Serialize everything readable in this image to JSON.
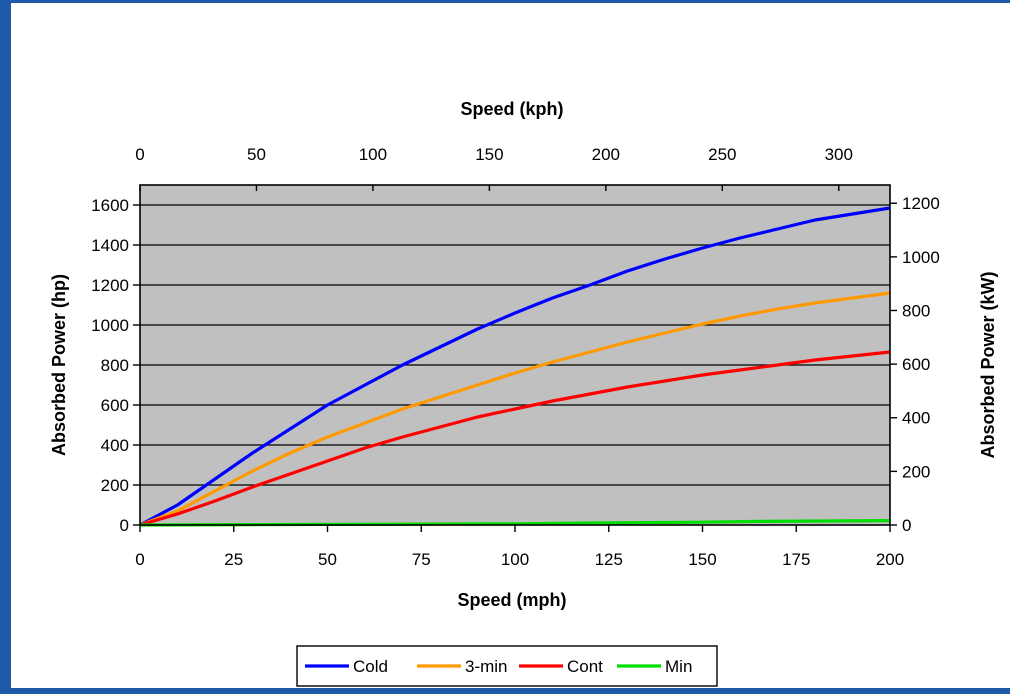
{
  "chart_data": {
    "type": "line",
    "xlabel": "Speed (mph)",
    "x2label": "Speed (kph)",
    "ylabel": "Absorbed Power (hp)",
    "y2label": "Absorbed Power (kW)",
    "xlim": [
      0,
      200
    ],
    "ylim": [
      0,
      1700
    ],
    "x2lim": [
      0,
      322
    ],
    "y2lim": [
      0,
      1268
    ],
    "x_ticks": [
      "0",
      "25",
      "50",
      "75",
      "100",
      "125",
      "150",
      "175",
      "200"
    ],
    "x2_ticks": [
      "0",
      "50",
      "100",
      "150",
      "200",
      "250",
      "300"
    ],
    "y_ticks": [
      "0",
      "200",
      "400",
      "600",
      "800",
      "1000",
      "1200",
      "1400",
      "1600"
    ],
    "y2_ticks": [
      "0",
      "200",
      "400",
      "600",
      "800",
      "1000",
      "1200"
    ],
    "grid": true,
    "plot_background": "#c0c0c0",
    "legend_position": "bottom",
    "series": [
      {
        "name": "Cold",
        "color": "#0000ff",
        "points": [
          [
            0,
            0
          ],
          [
            10,
            100
          ],
          [
            20,
            230
          ],
          [
            30,
            360
          ],
          [
            40,
            480
          ],
          [
            50,
            600
          ],
          [
            60,
            700
          ],
          [
            70,
            800
          ],
          [
            80,
            890
          ],
          [
            90,
            980
          ],
          [
            100,
            1060
          ],
          [
            110,
            1135
          ],
          [
            120,
            1200
          ],
          [
            130,
            1270
          ],
          [
            140,
            1330
          ],
          [
            150,
            1385
          ],
          [
            160,
            1435
          ],
          [
            170,
            1480
          ],
          [
            180,
            1525
          ],
          [
            190,
            1555
          ],
          [
            200,
            1585
          ]
        ]
      },
      {
        "name": "3-min",
        "color": "#ff9900",
        "points": [
          [
            0,
            0
          ],
          [
            10,
            70
          ],
          [
            20,
            170
          ],
          [
            30,
            270
          ],
          [
            40,
            360
          ],
          [
            50,
            440
          ],
          [
            60,
            510
          ],
          [
            70,
            580
          ],
          [
            80,
            640
          ],
          [
            90,
            700
          ],
          [
            100,
            760
          ],
          [
            110,
            815
          ],
          [
            120,
            865
          ],
          [
            130,
            915
          ],
          [
            140,
            960
          ],
          [
            150,
            1005
          ],
          [
            160,
            1045
          ],
          [
            170,
            1080
          ],
          [
            180,
            1110
          ],
          [
            190,
            1135
          ],
          [
            200,
            1160
          ]
        ]
      },
      {
        "name": "Cont",
        "color": "#ff0000",
        "points": [
          [
            0,
            0
          ],
          [
            10,
            55
          ],
          [
            20,
            120
          ],
          [
            30,
            190
          ],
          [
            40,
            255
          ],
          [
            50,
            320
          ],
          [
            60,
            385
          ],
          [
            70,
            440
          ],
          [
            80,
            490
          ],
          [
            90,
            540
          ],
          [
            100,
            580
          ],
          [
            110,
            620
          ],
          [
            120,
            655
          ],
          [
            130,
            690
          ],
          [
            140,
            720
          ],
          [
            150,
            750
          ],
          [
            160,
            775
          ],
          [
            170,
            800
          ],
          [
            180,
            825
          ],
          [
            190,
            845
          ],
          [
            200,
            865
          ]
        ]
      },
      {
        "name": "Min",
        "color": "#00dd00",
        "points": [
          [
            0,
            0
          ],
          [
            50,
            3
          ],
          [
            100,
            6
          ],
          [
            120,
            10
          ],
          [
            150,
            14
          ],
          [
            165,
            18
          ],
          [
            200,
            22
          ]
        ]
      }
    ]
  }
}
